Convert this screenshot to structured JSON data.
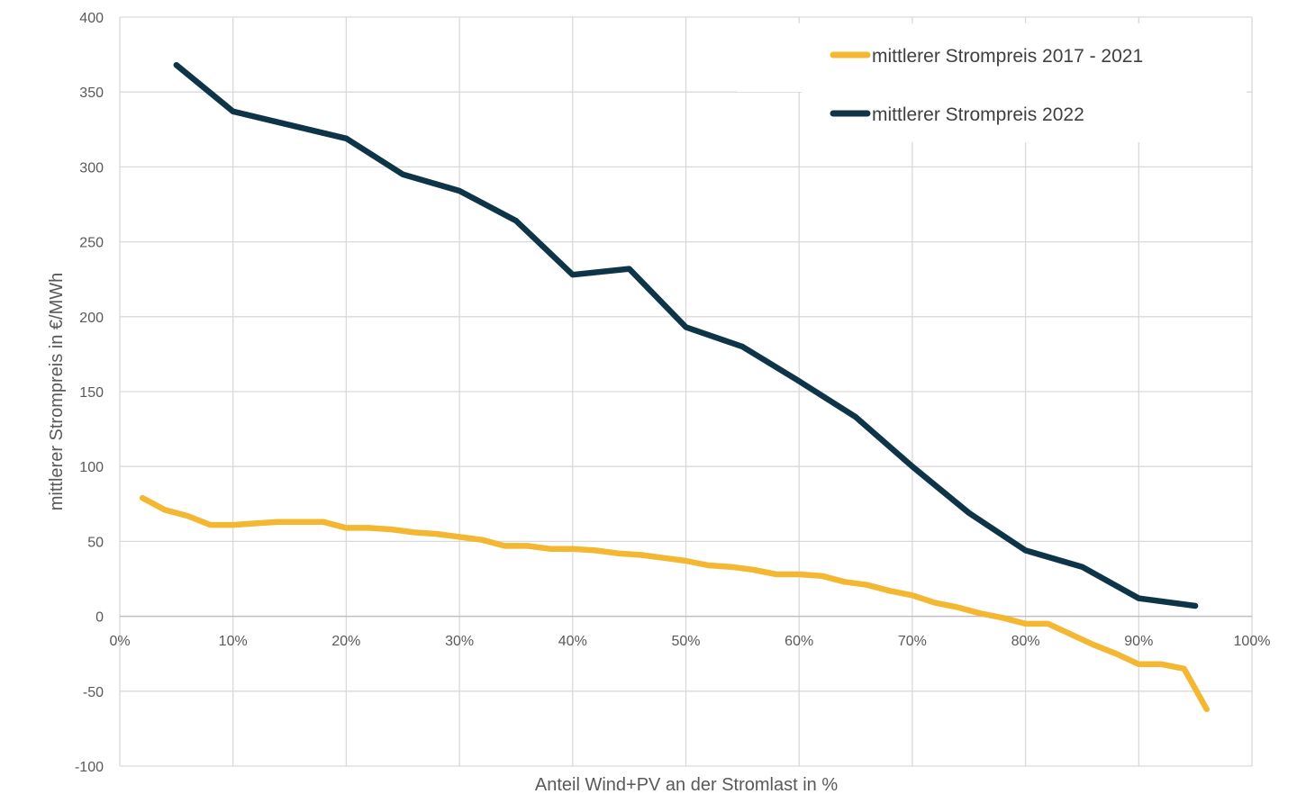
{
  "chart_data": {
    "type": "line",
    "xlabel": "Anteil Wind+PV an der Stromlast in %",
    "ylabel": "mittlerer Strompreis in €/MWh",
    "xlim": [
      0,
      100
    ],
    "ylim": [
      -100,
      400
    ],
    "x_ticks": [
      0,
      10,
      20,
      30,
      40,
      50,
      60,
      70,
      80,
      90,
      100
    ],
    "x_tick_labels": [
      "0%",
      "10%",
      "20%",
      "30%",
      "40%",
      "50%",
      "60%",
      "70%",
      "80%",
      "90%",
      "100%"
    ],
    "y_ticks": [
      -100,
      -50,
      0,
      50,
      100,
      150,
      200,
      250,
      300,
      350,
      400
    ],
    "y_tick_labels": [
      "-100",
      "-50",
      "0",
      "50",
      "100",
      "150",
      "200",
      "250",
      "300",
      "350",
      "400"
    ],
    "grid": true,
    "legend_position": "top-right",
    "series": [
      {
        "name": "mittlerer Strompreis 2017 - 2021",
        "color": "#F4B731",
        "x": [
          2,
          4,
          6,
          8,
          10,
          12,
          14,
          16,
          18,
          20,
          22,
          24,
          26,
          28,
          30,
          32,
          34,
          36,
          38,
          40,
          42,
          44,
          46,
          48,
          50,
          52,
          54,
          56,
          58,
          60,
          62,
          64,
          66,
          68,
          70,
          72,
          74,
          76,
          78,
          80,
          82,
          84,
          86,
          88,
          90,
          92,
          94,
          96
        ],
        "y": [
          79,
          71,
          67,
          61,
          61,
          62,
          63,
          63,
          63,
          59,
          59,
          58,
          56,
          55,
          53,
          51,
          47,
          47,
          45,
          45,
          44,
          42,
          41,
          39,
          37,
          34,
          33,
          31,
          28,
          28,
          27,
          23,
          21,
          17,
          14,
          9,
          6,
          2,
          -1,
          -5,
          -5,
          -12,
          -19,
          -25,
          -32,
          -32,
          -35,
          -62
        ]
      },
      {
        "name": "mittlerer Strompreis 2022",
        "color": "#0E3448",
        "x": [
          5,
          10,
          15,
          20,
          25,
          30,
          35,
          40,
          45,
          50,
          55,
          60,
          65,
          70,
          75,
          80,
          85,
          90,
          95
        ],
        "y": [
          368,
          337,
          328,
          319,
          295,
          284,
          264,
          228,
          232,
          193,
          180,
          157,
          133,
          100,
          69,
          44,
          33,
          12,
          7
        ]
      }
    ]
  }
}
